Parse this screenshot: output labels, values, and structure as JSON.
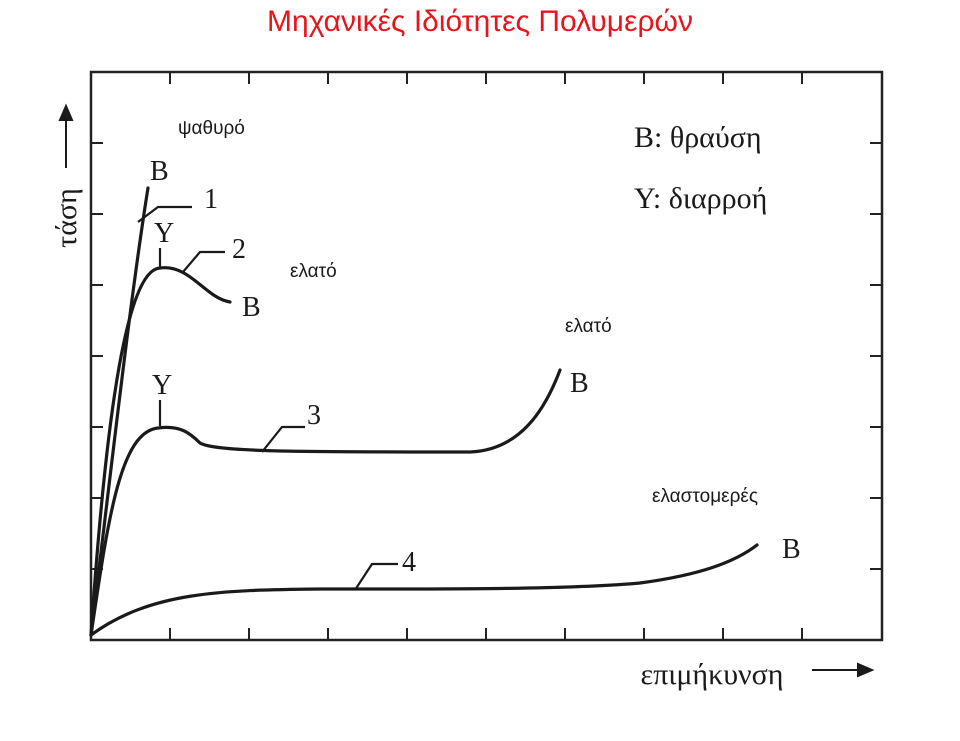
{
  "slide": {
    "title": "Μηχανικές Ιδιότητες Πολυμερών",
    "title_color": "#e8141b"
  },
  "axes": {
    "y_label": "τάση",
    "x_label": "επιμήκυνση"
  },
  "legend": {
    "break": "B: θραύση",
    "yield": "Y: διαρροή"
  },
  "markers": {
    "break": "B",
    "yield": "Y"
  },
  "curves": [
    {
      "id": "1",
      "label": "1",
      "type": "ψαθυρό"
    },
    {
      "id": "2",
      "label": "2",
      "type": "ελατό"
    },
    {
      "id": "3",
      "label": "3",
      "type": "ελατό"
    },
    {
      "id": "4",
      "label": "4",
      "type": "ελαστομερές"
    }
  ],
  "colors": {
    "ink": "#1a1a1a",
    "frame": "#222222"
  }
}
